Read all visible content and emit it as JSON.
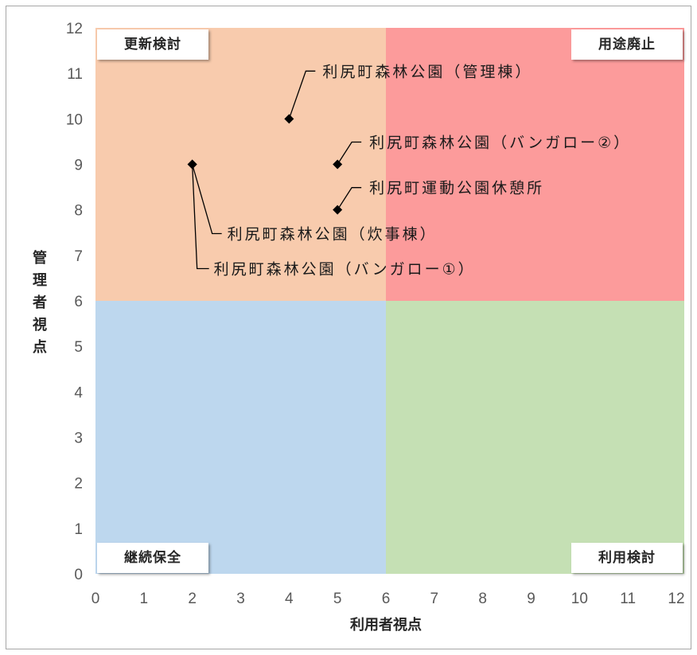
{
  "chart_data": {
    "type": "scatter",
    "xlabel": "利用者視点",
    "ylabel": "管理者視点",
    "xlim": [
      0,
      12
    ],
    "ylim": [
      0,
      12
    ],
    "xticks": [
      0,
      1,
      2,
      3,
      4,
      5,
      6,
      7,
      8,
      9,
      10,
      11,
      12
    ],
    "yticks": [
      0,
      1,
      2,
      3,
      4,
      5,
      6,
      7,
      8,
      9,
      10,
      11,
      12
    ],
    "grid": false,
    "quadrant_split": {
      "x": 6,
      "y": 6
    },
    "quadrants": [
      {
        "label": "更新検討",
        "position": "top-left",
        "color": "#F8CBAD"
      },
      {
        "label": "用途廃止",
        "position": "top-right",
        "color": "#FC9B9B"
      },
      {
        "label": "継続保全",
        "position": "bottom-left",
        "color": "#BDD7EE"
      },
      {
        "label": "利用検討",
        "position": "bottom-right",
        "color": "#C5E0B4"
      }
    ],
    "marker_color": "#000000",
    "points": [
      {
        "label": "利尻町森林公園（管理棟）",
        "x": 4,
        "y": 10
      },
      {
        "label": "利尻町森林公園（バンガロー②）",
        "x": 5,
        "y": 9
      },
      {
        "label": "利尻町運動公園休憩所",
        "x": 5,
        "y": 8
      },
      {
        "label": "利尻町森林公園（炊事棟）",
        "x": 2,
        "y": 9
      },
      {
        "label": "利尻町森林公園（バンガロー①）",
        "x": 2,
        "y": 9
      }
    ]
  }
}
